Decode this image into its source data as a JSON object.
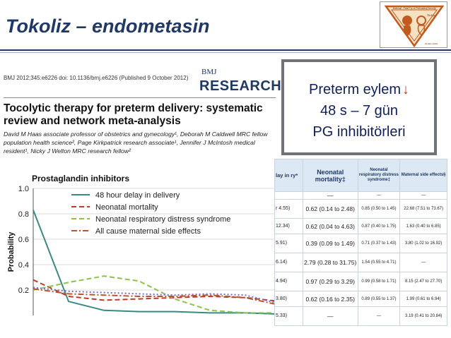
{
  "slide": {
    "title": "Tokoliz – endometasin"
  },
  "logo": {
    "line1": "Maternal - Fetal Tıp ve Perinatoloji Derneği",
    "line2": "Türkiye",
    "year": "22 Ekim 2016"
  },
  "paper": {
    "citation": "BMJ 2012;345:e6226 doi: 10.1136/bmj.e6226 (Published 9 October 2012)",
    "journal_small": "BMJ",
    "journal_big": "RESEARCH",
    "title": "Tocolytic therapy for preterm delivery: systematic review and network meta-analysis",
    "authors": "David M Haas associate professor of obstetrics and gynecology¹, Deborah M Caldwell MRC fellow population health science², Page Kirkpatrick research associate¹, Jennifer J McIntosh medical resident¹, Nicky J Welton MRC research fellow²"
  },
  "callout": {
    "line1": "Preterm eylem",
    "arrow": "↓",
    "line2": "48 s – 7 gün",
    "line3": "PG inhibitörleri"
  },
  "table": {
    "headers": [
      "lay in\nry*",
      "Neonatal mortality‡",
      "Neonatal respiratory distress syndrome‡",
      "Maternal side effects§"
    ],
    "subrow": [
      "",
      "—",
      "—",
      "—"
    ],
    "rows": [
      [
        "r 4.55)",
        "0.62 (0.14 to 2.48)",
        "0.85 (0.50 to 1.45)",
        "22.68 (7.51 to 73.67)"
      ],
      [
        "12.34)",
        "0.62 (0.04 to 4.63)",
        "0.87 (0.40 to 1.75)",
        "1.63 (0.40 to 6.85)"
      ],
      [
        "5.91)",
        "0.39 (0.09 to 1.49)",
        "0.71 (0.37 to 1.43)",
        "3.80 (1.02 to 16.92)"
      ],
      [
        "6.14)",
        "2.79 (0.28 to 31.75)",
        "1.54 (0.55 to 4.71)",
        "—"
      ],
      [
        "4.94)",
        "0.97 (0.29 to 3.29)",
        "0.99 (0.58 to 1.71)",
        "8.15 (2.47 to 27.70)"
      ],
      [
        "3.80)",
        "0.62 (0.16 to 2.35)",
        "0.89 (0.55 to 1.37)",
        "1.99 (0.61 to 6.94)"
      ],
      [
        "5.33)",
        "—",
        "—",
        "3.19 (0.41 to 20.84)"
      ]
    ]
  },
  "chart_data": {
    "type": "line",
    "title": "Prostaglandin inhibitors",
    "ylabel": "Probability",
    "xlabel": "",
    "ylim": [
      0,
      1.0
    ],
    "yticks": [
      0.2,
      0.4,
      0.6,
      0.8,
      1.0
    ],
    "yticklabels": [
      "0.2",
      "0.4",
      "0.6",
      "0.8",
      "1.0"
    ],
    "x": [
      1,
      2,
      3,
      4,
      5,
      6,
      7,
      8
    ],
    "legend_position": "top-right",
    "series": [
      {
        "name": "48 hour delay in delivery",
        "color": "#3a8a84",
        "dash": "solid",
        "values": [
          0.83,
          0.11,
          0.04,
          0.03,
          0.03,
          0.02,
          0.02,
          0.01
        ]
      },
      {
        "name": "Neonatal mortality",
        "color": "#c0392b",
        "dash": "dashed",
        "values": [
          0.28,
          0.15,
          0.12,
          0.13,
          0.14,
          0.15,
          0.14,
          0.11
        ]
      },
      {
        "name": "Neonatal respiratory distress syndrome",
        "color": "#8bc34a",
        "dash": "dashed",
        "values": [
          0.2,
          0.26,
          0.31,
          0.27,
          0.13,
          0.04,
          0.02,
          0.02
        ]
      },
      {
        "name": "All cause maternal side effects",
        "color": "#b5562a",
        "dash": "dashdot",
        "values": [
          0.21,
          0.17,
          0.16,
          0.15,
          0.15,
          0.16,
          0.14,
          0.08
        ]
      },
      {
        "name": "",
        "color": "#7b68c9",
        "dash": "dotted",
        "values": [
          0.22,
          0.19,
          0.18,
          0.17,
          0.16,
          0.17,
          0.16,
          0.09
        ]
      }
    ]
  }
}
